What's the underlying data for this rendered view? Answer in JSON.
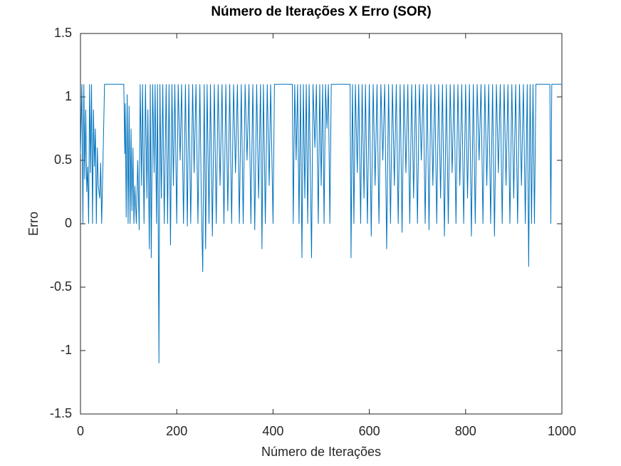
{
  "chart_data": {
    "type": "line",
    "title": "Número de Iterações X Erro (SOR)",
    "x_label": "Número de Iterações",
    "y_label": "Erro",
    "color": "#0072bd",
    "x": [
      0,
      3,
      5,
      7,
      9,
      11,
      13,
      15,
      17,
      19,
      21,
      23,
      25,
      27,
      29,
      31,
      33,
      35,
      37,
      40,
      42,
      44,
      46,
      50,
      90,
      92,
      93,
      95,
      97,
      99,
      101,
      103,
      105,
      107,
      109,
      111,
      113,
      116,
      119,
      122,
      124,
      127,
      129,
      132,
      135,
      138,
      140,
      143,
      145,
      147,
      150,
      153,
      155,
      158,
      160,
      163,
      165,
      168,
      171,
      174,
      178,
      181,
      184,
      187,
      190,
      193,
      196,
      200,
      203,
      207,
      210,
      214,
      218,
      222,
      225,
      229,
      233,
      236,
      240,
      244,
      248,
      251,
      254,
      257,
      260,
      263,
      267,
      270,
      274,
      278,
      282,
      286,
      290,
      294,
      298,
      302,
      306,
      310,
      314,
      318,
      322,
      326,
      330,
      334,
      338,
      342,
      346,
      350,
      354,
      358,
      362,
      366,
      370,
      374,
      377,
      380,
      384,
      388,
      392,
      395,
      400,
      403,
      440,
      442,
      445,
      448,
      451,
      454,
      457,
      460,
      463,
      466,
      469,
      472,
      475,
      480,
      483,
      487,
      490,
      494,
      497,
      500,
      503,
      506,
      509,
      512,
      515,
      518,
      521,
      560,
      562,
      565,
      568,
      571,
      575,
      578,
      582,
      585,
      589,
      592,
      596,
      600,
      604,
      608,
      612,
      616,
      620,
      624,
      628,
      632,
      636,
      640,
      644,
      648,
      652,
      656,
      660,
      664,
      668,
      672,
      676,
      680,
      684,
      688,
      692,
      696,
      700,
      704,
      708,
      712,
      716,
      720,
      724,
      728,
      732,
      736,
      740,
      744,
      748,
      752,
      756,
      760,
      764,
      768,
      772,
      776,
      780,
      784,
      788,
      792,
      796,
      800,
      804,
      808,
      812,
      816,
      820,
      824,
      828,
      832,
      836,
      840,
      844,
      848,
      852,
      856,
      860,
      864,
      868,
      872,
      876,
      880,
      884,
      888,
      892,
      896,
      900,
      904,
      908,
      912,
      916,
      920,
      924,
      928,
      931,
      934,
      937,
      940,
      943,
      946,
      975,
      977,
      979,
      1000
    ],
    "values": [
      0.55,
      1.1,
      0,
      1.1,
      0.35,
      0.9,
      0.25,
      0.45,
      0,
      1.1,
      0.4,
      1.1,
      0,
      0.9,
      0.45,
      0.75,
      0,
      0.6,
      0.3,
      0.2,
      0.48,
      0,
      0.35,
      1.1,
      1.1,
      0.55,
      0.95,
      0.05,
      1.02,
      0,
      0.93,
      0,
      0.75,
      0.1,
      0.6,
      0,
      0.3,
      0,
      0.5,
      -0.05,
      1.1,
      0.3,
      1.1,
      0,
      1.1,
      0.2,
      0.9,
      -0.2,
      1.1,
      -0.27,
      1.1,
      0.4,
      1.1,
      0,
      1.1,
      -1.1,
      1.1,
      0.2,
      1.1,
      0,
      1.1,
      0,
      1.1,
      -0.17,
      1.1,
      0.3,
      1.1,
      0,
      1.1,
      0.5,
      1.1,
      0,
      1.1,
      -0.02,
      1.1,
      0,
      1.1,
      0.4,
      1.1,
      0,
      1.1,
      0.2,
      -0.38,
      1.1,
      -0.2,
      1.1,
      0,
      1.1,
      -0.1,
      1.1,
      0,
      1.1,
      0.3,
      1.1,
      0,
      1.1,
      0.1,
      1.1,
      0,
      1.1,
      0.4,
      1.1,
      0,
      1.1,
      0,
      1.1,
      0.5,
      1.1,
      0,
      1.1,
      -0.05,
      1.1,
      0.2,
      1.1,
      -0.2,
      1.1,
      0,
      1.1,
      0.3,
      1.1,
      0,
      1.1,
      1.1,
      0,
      1.1,
      0.5,
      1.1,
      0,
      1.1,
      -0.27,
      1.1,
      0.2,
      1.1,
      0,
      1.1,
      -0.27,
      1.1,
      0.6,
      1.1,
      0,
      1.1,
      0.3,
      1.1,
      0,
      1.1,
      0.75,
      1.1,
      0,
      1.1,
      1.1,
      -0.27,
      1.1,
      0,
      1.1,
      0.4,
      1.1,
      0,
      1.1,
      0.2,
      1.1,
      0,
      1.1,
      -0.1,
      1.1,
      0.3,
      1.1,
      0,
      1.1,
      0.5,
      1.1,
      -0.2,
      1.1,
      0,
      1.1,
      0.3,
      1.1,
      0,
      1.1,
      -0.07,
      1.1,
      0.4,
      1.1,
      0,
      1.1,
      0.2,
      1.1,
      0,
      1.1,
      0.5,
      1.1,
      0,
      1.1,
      -0.05,
      1.1,
      0.3,
      1.1,
      0,
      1.1,
      0.2,
      1.1,
      -0.1,
      1.1,
      0,
      1.1,
      0.4,
      1.1,
      0,
      1.1,
      0.3,
      1.1,
      0,
      1.1,
      0.2,
      1.1,
      -0.1,
      1.1,
      0,
      1.1,
      0.5,
      1.1,
      0,
      1.1,
      0.3,
      1.1,
      0,
      1.1,
      -0.1,
      1.1,
      0.4,
      1.1,
      0,
      1.1,
      0.3,
      1.1,
      0,
      1.1,
      0.2,
      1.1,
      0,
      1.1,
      0.3,
      1.1,
      0,
      1.1,
      -0.34,
      1.1,
      0,
      1.1,
      0,
      1.1,
      1.1,
      0,
      1.1,
      1.1
    ],
    "xlim": [
      0,
      1000
    ],
    "xticks": [
      0,
      200,
      400,
      600,
      800,
      1000
    ],
    "ylim": [
      -1.5,
      1.5
    ],
    "yticks": [
      -1.5,
      -1,
      -0.5,
      0,
      0.5,
      1,
      1.5
    ],
    "grid": false
  }
}
